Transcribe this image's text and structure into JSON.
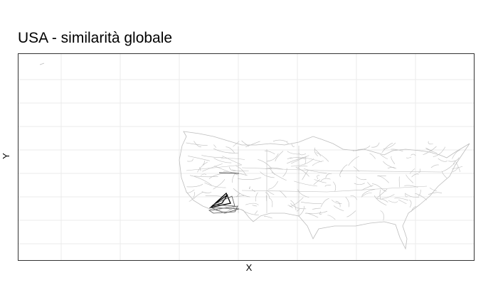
{
  "chart_data": {
    "type": "line",
    "title": "USA - similarità globale",
    "xlabel": "X",
    "ylabel": "Y",
    "grid": true,
    "axis_ticks": false,
    "legend": "none",
    "description_note": "",
    "colors": {
      "panel_border": "#333333",
      "grid": "#ebebeb",
      "network_line": "#bdbdbd",
      "highlight_line": "#000000"
    }
  }
}
